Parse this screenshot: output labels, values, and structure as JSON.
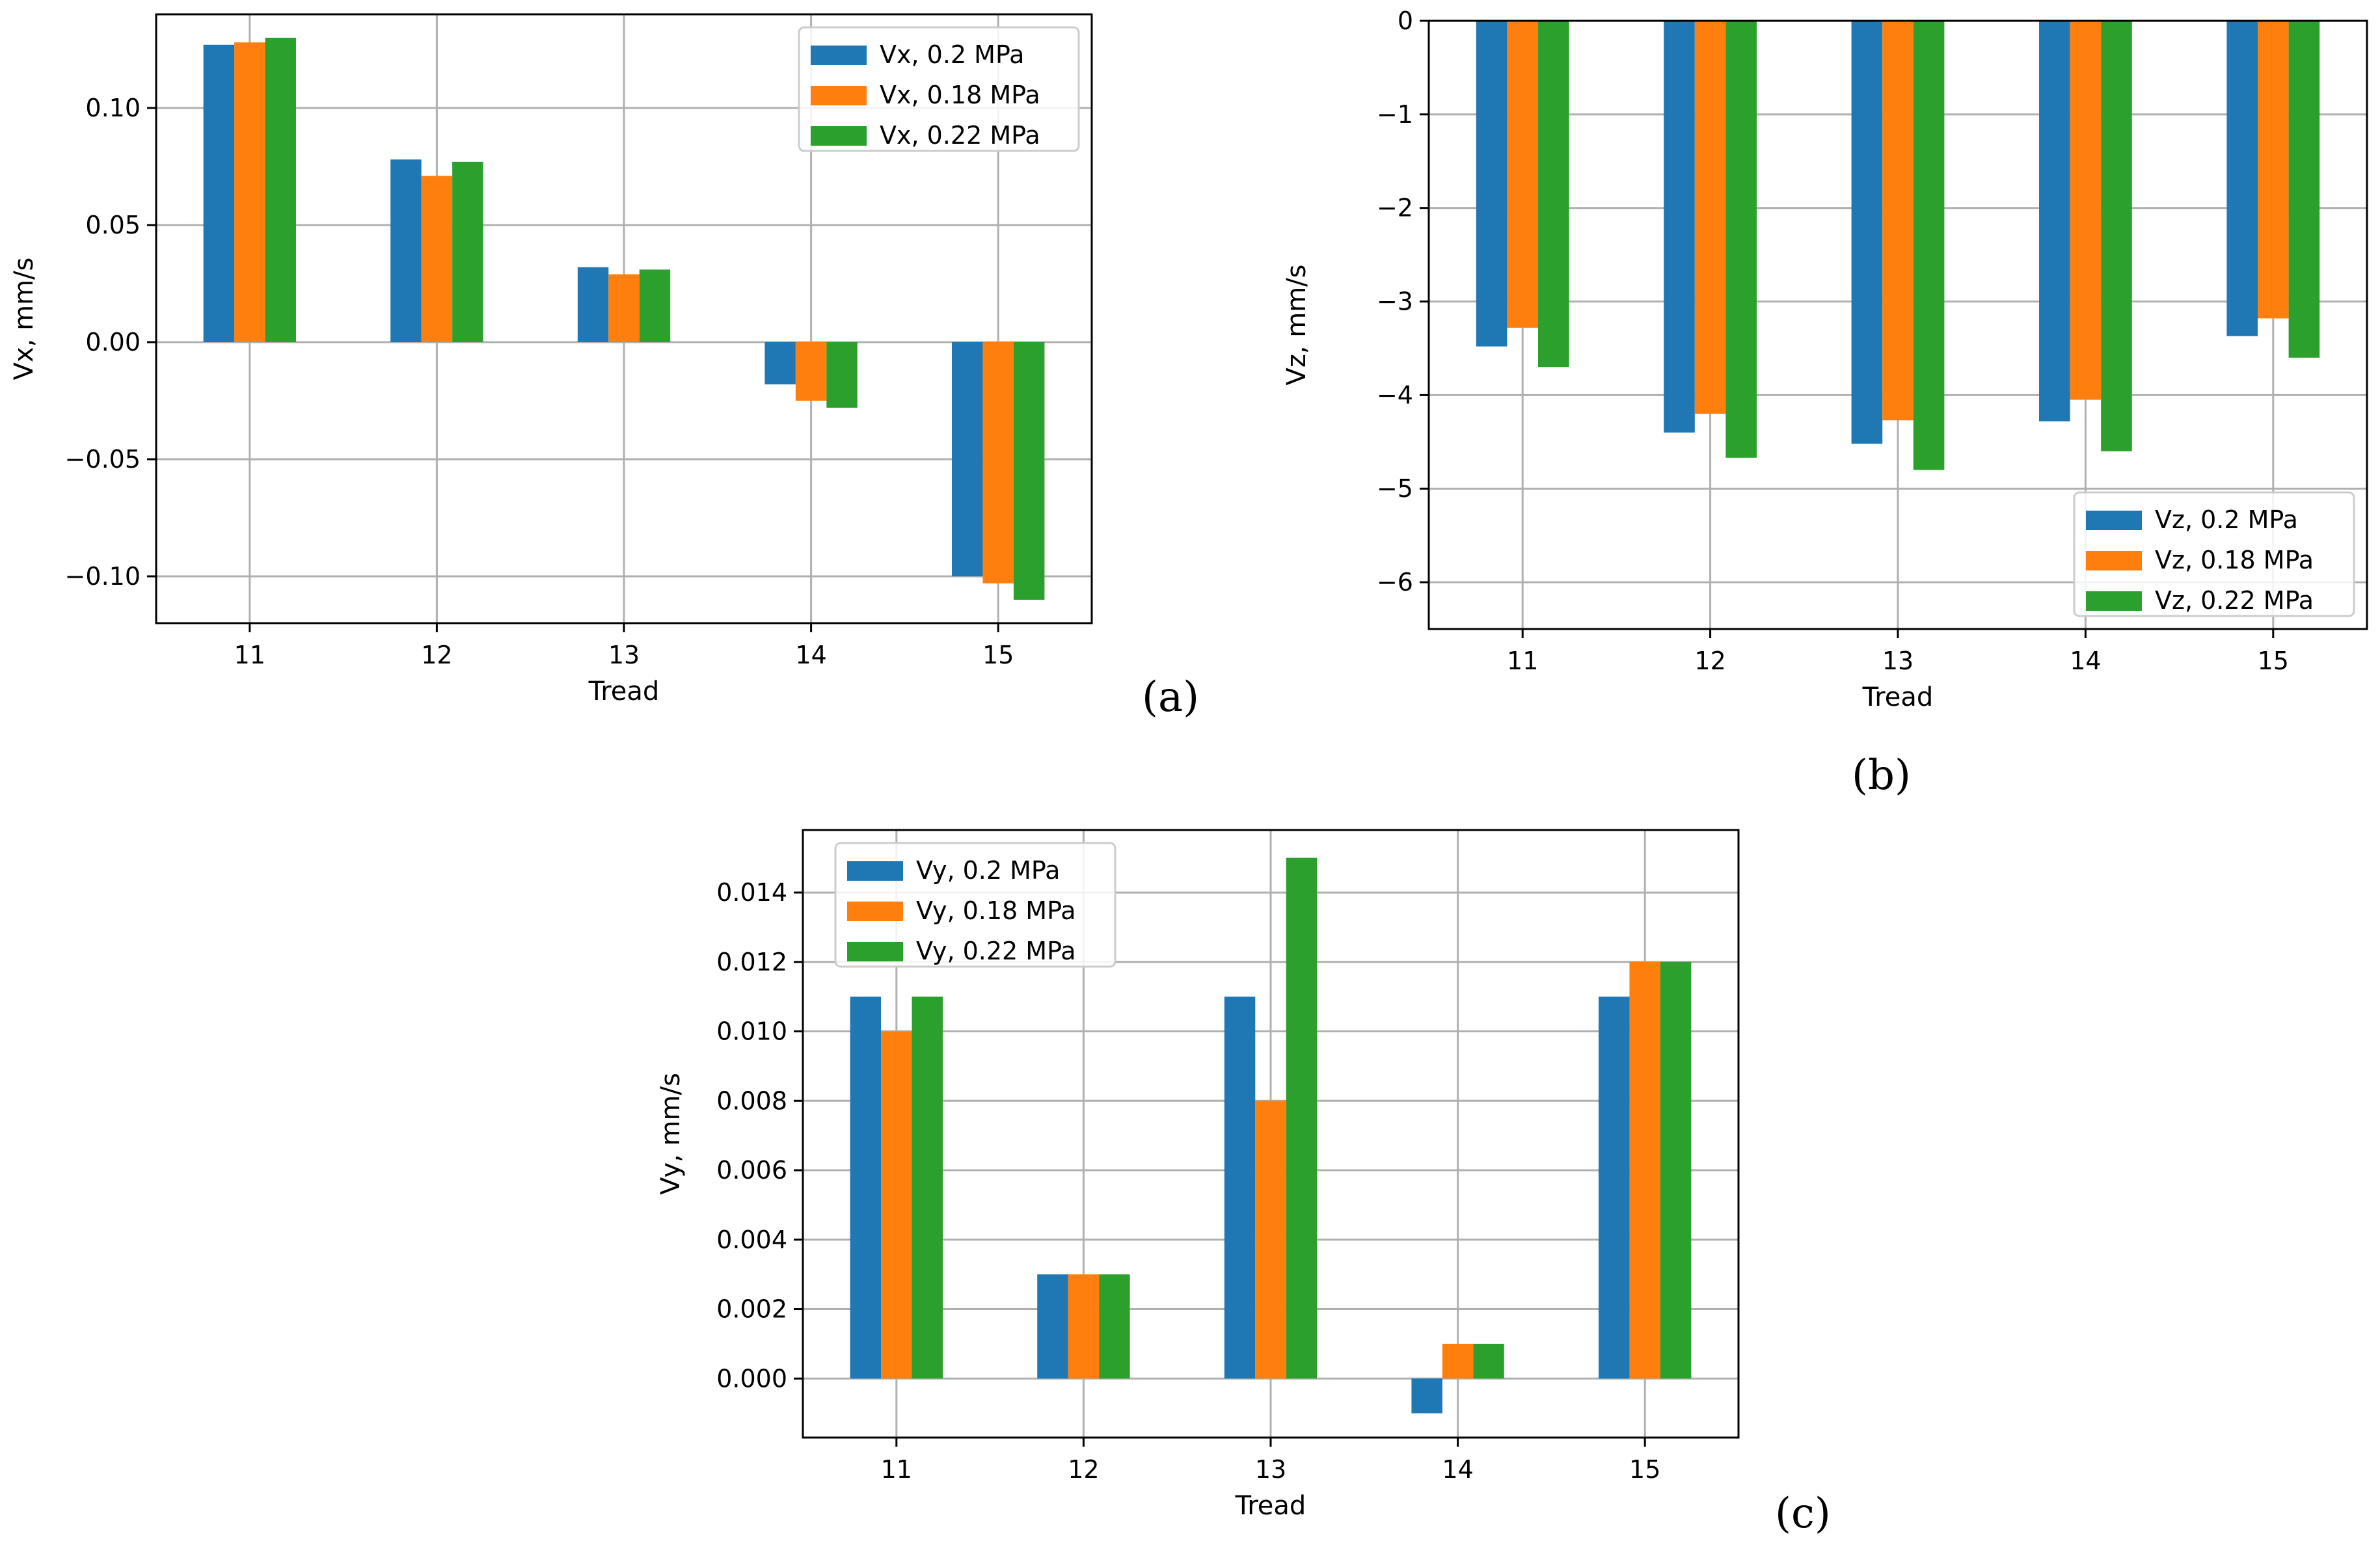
{
  "figure": {
    "panel_labels": [
      "(a)",
      "(b)",
      "(c)"
    ]
  },
  "colors": {
    "s1": "#1f77b4",
    "s2": "#ff7f0e",
    "s3": "#2ca02c",
    "grid": "#b0b0b0",
    "axis": "#000000"
  },
  "chart_data": [
    {
      "type": "bar",
      "panel": "(a)",
      "xlabel": "Tread",
      "ylabel": "Vx, mm/s",
      "categories": [
        "11",
        "12",
        "13",
        "14",
        "15"
      ],
      "ylim": [
        -0.12,
        0.14
      ],
      "yticks": [
        0.1,
        0.05,
        0.0,
        -0.05,
        -0.1
      ],
      "ytick_labels": [
        "0.10",
        "0.05",
        "0.00",
        "−0.05",
        "−0.10"
      ],
      "legend": "top-right",
      "grid": true,
      "series": [
        {
          "name": "Vx, 0.2 MPa",
          "values": [
            0.127,
            0.078,
            0.032,
            -0.018,
            -0.1
          ]
        },
        {
          "name": "Vx, 0.18 MPa",
          "values": [
            0.128,
            0.071,
            0.029,
            -0.025,
            -0.103
          ]
        },
        {
          "name": "Vx, 0.22 MPa",
          "values": [
            0.13,
            0.077,
            0.031,
            -0.028,
            -0.11
          ]
        }
      ]
    },
    {
      "type": "bar",
      "panel": "(b)",
      "xlabel": "Tread",
      "ylabel": "Vz, mm/s",
      "categories": [
        "11",
        "12",
        "13",
        "14",
        "15"
      ],
      "ylim": [
        -6.5,
        0
      ],
      "yticks": [
        0,
        -1,
        -2,
        -3,
        -4,
        -5,
        -6
      ],
      "ytick_labels": [
        "0",
        "−1",
        "−2",
        "−3",
        "−4",
        "−5",
        "−6"
      ],
      "legend": "bottom-right",
      "grid": true,
      "series": [
        {
          "name": "Vz, 0.2 MPa",
          "values": [
            -3.48,
            -4.4,
            -4.52,
            -4.28,
            -3.37
          ]
        },
        {
          "name": "Vz, 0.18 MPa",
          "values": [
            -3.28,
            -4.2,
            -4.27,
            -4.05,
            -3.18
          ]
        },
        {
          "name": "Vz, 0.22 MPa",
          "values": [
            -3.7,
            -4.67,
            -4.8,
            -4.6,
            -3.6
          ]
        }
      ]
    },
    {
      "type": "bar",
      "panel": "(c)",
      "xlabel": "Tread",
      "ylabel": "Vy, mm/s",
      "categories": [
        "11",
        "12",
        "13",
        "14",
        "15"
      ],
      "ylim": [
        -0.0017,
        0.0158
      ],
      "yticks": [
        0.0,
        0.002,
        0.004,
        0.006,
        0.008,
        0.01,
        0.012,
        0.014
      ],
      "ytick_labels": [
        "0.000",
        "0.002",
        "0.004",
        "0.006",
        "0.008",
        "0.010",
        "0.012",
        "0.014"
      ],
      "legend": "top-left",
      "grid": true,
      "series": [
        {
          "name": "Vy, 0.2 MPa",
          "values": [
            0.011,
            0.003,
            0.011,
            -0.001,
            0.011
          ]
        },
        {
          "name": "Vy, 0.18 MPa",
          "values": [
            0.01,
            0.003,
            0.008,
            0.001,
            0.012
          ]
        },
        {
          "name": "Vy, 0.22 MPa",
          "values": [
            0.011,
            0.003,
            0.015,
            0.001,
            0.012
          ]
        }
      ]
    }
  ]
}
